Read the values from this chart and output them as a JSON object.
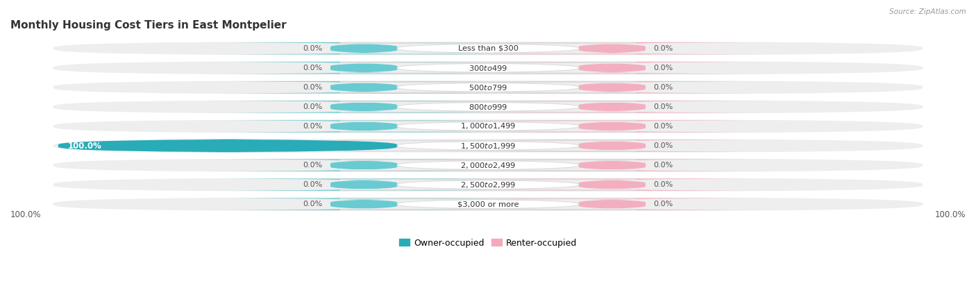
{
  "title": "Monthly Housing Cost Tiers in East Montpelier",
  "source": "Source: ZipAtlas.com",
  "categories": [
    "Less than $300",
    "$300 to $499",
    "$500 to $799",
    "$800 to $999",
    "$1,000 to $1,499",
    "$1,500 to $1,999",
    "$2,000 to $2,499",
    "$2,500 to $2,999",
    "$3,000 or more"
  ],
  "owner_values": [
    0.0,
    0.0,
    0.0,
    0.0,
    0.0,
    100.0,
    0.0,
    0.0,
    0.0
  ],
  "renter_values": [
    0.0,
    0.0,
    0.0,
    0.0,
    0.0,
    0.0,
    0.0,
    0.0,
    0.0
  ],
  "owner_color": "#5BC8CE",
  "renter_color": "#F4A8BB",
  "owner_color_full": "#29ABB8",
  "bar_bg_color": "#EEEEEE",
  "figsize": [
    14.06,
    4.15
  ],
  "dpi": 100,
  "bottom_left_label": "100.0%",
  "bottom_right_label": "100.0%",
  "special_row": 5
}
